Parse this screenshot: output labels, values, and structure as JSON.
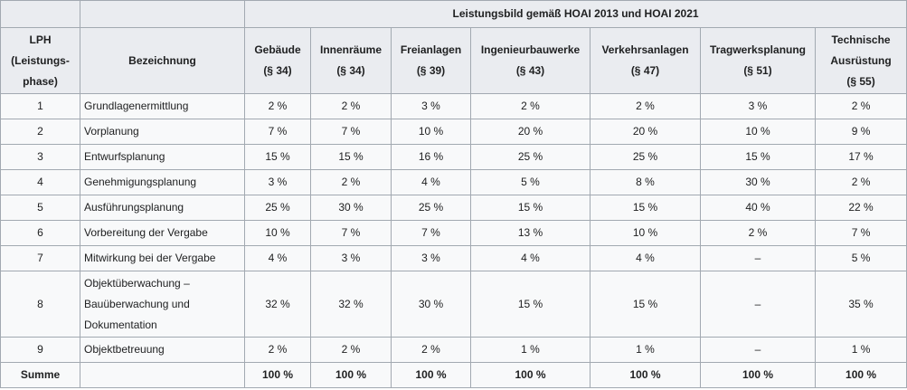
{
  "group_header": "Leistungsbild gemäß HOAI 2013 und HOAI 2021",
  "columns": {
    "lph": [
      "LPH",
      "(Leistungs-",
      "phase)"
    ],
    "bezeichnung": "Bezeichnung",
    "categories": [
      [
        "Gebäude",
        "(§ 34)"
      ],
      [
        "Innenräume",
        "(§ 34)"
      ],
      [
        "Freianlagen",
        "(§ 39)"
      ],
      [
        "Ingenieurbauwerke",
        "(§ 43)"
      ],
      [
        "Verkehrsanlagen",
        "(§ 47)"
      ],
      [
        "Tragwerksplanung",
        "(§ 51)"
      ],
      [
        "Technische",
        "Ausrüstung",
        "(§ 55)"
      ]
    ]
  },
  "rows": [
    {
      "lph": "1",
      "name": [
        "Grundlagenermittlung"
      ],
      "values": [
        "2 %",
        "2 %",
        "3 %",
        "2 %",
        "2 %",
        "3 %",
        "2 %"
      ]
    },
    {
      "lph": "2",
      "name": [
        "Vorplanung"
      ],
      "values": [
        "7 %",
        "7 %",
        "10 %",
        "20 %",
        "20 %",
        "10 %",
        "9 %"
      ]
    },
    {
      "lph": "3",
      "name": [
        "Entwurfsplanung"
      ],
      "values": [
        "15 %",
        "15 %",
        "16 %",
        "25 %",
        "25 %",
        "15 %",
        "17 %"
      ]
    },
    {
      "lph": "4",
      "name": [
        "Genehmigungsplanung"
      ],
      "values": [
        "3 %",
        "2 %",
        "4 %",
        "5 %",
        "8 %",
        "30 %",
        "2 %"
      ]
    },
    {
      "lph": "5",
      "name": [
        "Ausführungsplanung"
      ],
      "values": [
        "25 %",
        "30 %",
        "25 %",
        "15 %",
        "15 %",
        "40 %",
        "22 %"
      ]
    },
    {
      "lph": "6",
      "name": [
        "Vorbereitung der Vergabe"
      ],
      "values": [
        "10 %",
        "7 %",
        "7 %",
        "13 %",
        "10 %",
        "2 %",
        "7 %"
      ]
    },
    {
      "lph": "7",
      "name": [
        "Mitwirkung bei der Vergabe"
      ],
      "values": [
        "4 %",
        "3 %",
        "3 %",
        "4 %",
        "4 %",
        "–",
        "5 %"
      ]
    },
    {
      "lph": "8",
      "name": [
        "Objektüberwachung –",
        "Bauüberwachung und",
        "Dokumentation"
      ],
      "values": [
        "32 %",
        "32 %",
        "30 %",
        "15 %",
        "15 %",
        "–",
        "35 %"
      ]
    },
    {
      "lph": "9",
      "name": [
        "Objektbetreuung"
      ],
      "values": [
        "2 %",
        "2 %",
        "2 %",
        "1 %",
        "1 %",
        "–",
        "1 %"
      ]
    }
  ],
  "sum_row": {
    "label": "Summe",
    "values": [
      "100 %",
      "100 %",
      "100 %",
      "100 %",
      "100 %",
      "100 %",
      "100 %"
    ]
  }
}
